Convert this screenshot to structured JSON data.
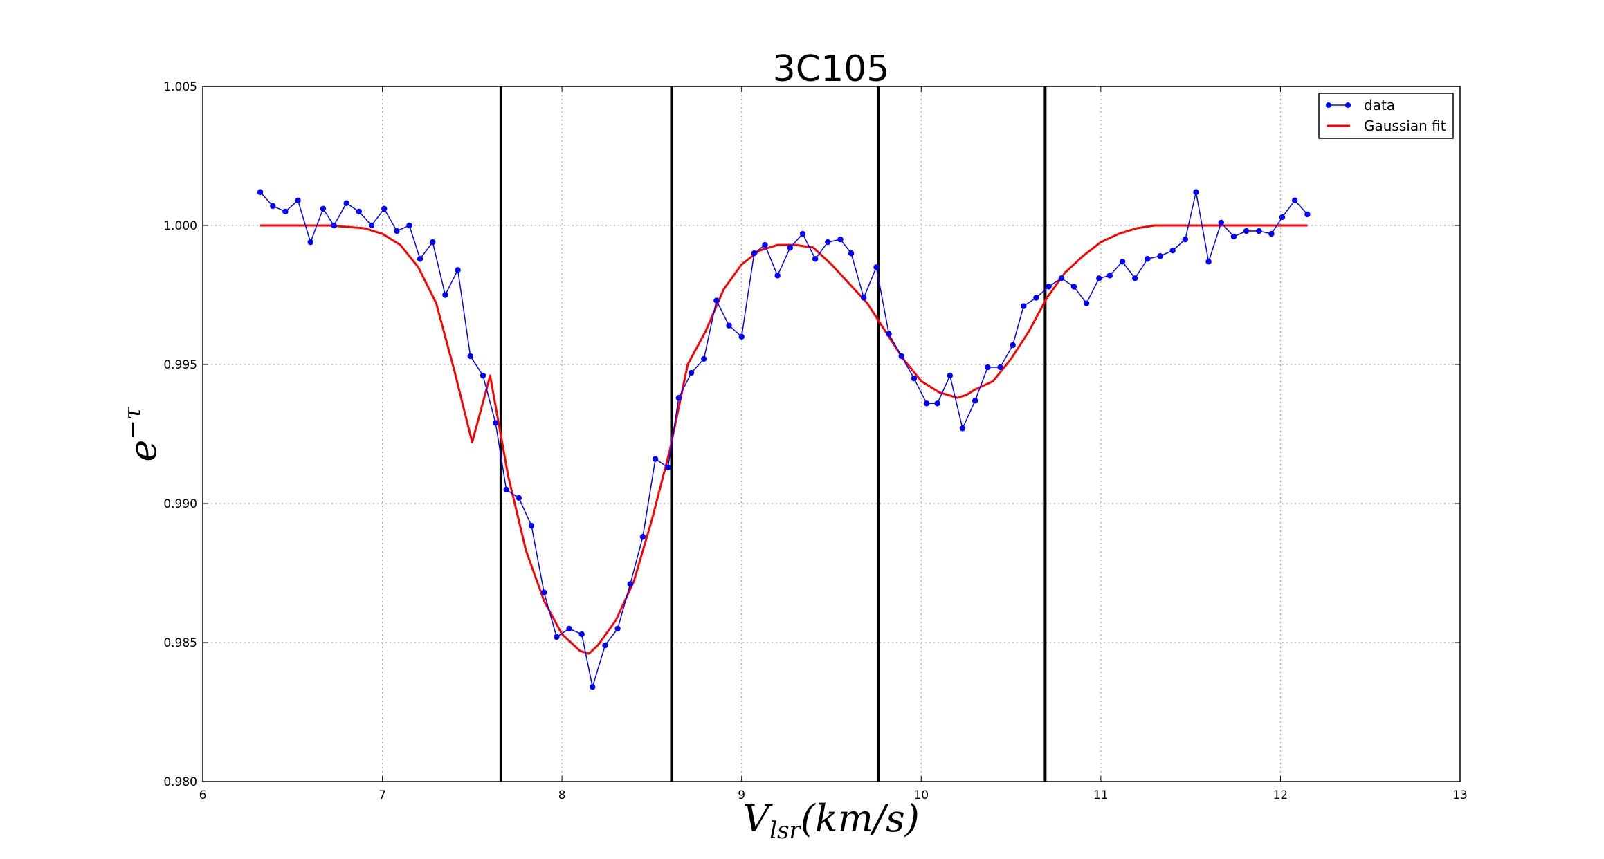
{
  "chart_data": {
    "type": "line",
    "title": "3C105",
    "xlabel": "V_lsr(km/s)",
    "ylabel": "e^-τ",
    "xlim": [
      6,
      13
    ],
    "ylim": [
      0.98,
      1.005
    ],
    "grid": true,
    "legend_position": "top-right",
    "x_ticks": [
      "6",
      "7",
      "8",
      "9",
      "10",
      "11",
      "12",
      "13"
    ],
    "y_ticks": [
      "0.980",
      "0.985",
      "0.990",
      "0.995",
      "1.000",
      "1.005"
    ],
    "vertical_lines": [
      7.66,
      8.61,
      9.76,
      10.69
    ],
    "series": [
      {
        "name": "data",
        "color": "#0000ff",
        "marker": "circle",
        "x": [
          6.32,
          6.39,
          6.46,
          6.53,
          6.6,
          6.67,
          6.73,
          6.8,
          6.87,
          6.94,
          7.01,
          7.08,
          7.15,
          7.21,
          7.28,
          7.35,
          7.42,
          7.49,
          7.56,
          7.63,
          7.69,
          7.76,
          7.83,
          7.9,
          7.97,
          8.04,
          8.11,
          8.17,
          8.24,
          8.31,
          8.38,
          8.45,
          8.52,
          8.59,
          8.65,
          8.72,
          8.79,
          8.86,
          8.93,
          9.0,
          9.07,
          9.13,
          9.2,
          9.27,
          9.34,
          9.41,
          9.48,
          9.55,
          9.61,
          9.68,
          9.75,
          9.82,
          9.89,
          9.96,
          10.03,
          10.09,
          10.16,
          10.23,
          10.3,
          10.37,
          10.44,
          10.51,
          10.57,
          10.64,
          10.71,
          10.78,
          10.85,
          10.92,
          10.99,
          11.05,
          11.12,
          11.19,
          11.26,
          11.33,
          11.4,
          11.47,
          11.53,
          11.6,
          11.67,
          11.74,
          11.81,
          11.88,
          11.95,
          12.01,
          12.08,
          12.15
        ],
        "y": [
          1.0012,
          1.0007,
          1.0005,
          1.0009,
          0.9994,
          1.0006,
          1.0,
          1.0008,
          1.0005,
          1.0,
          1.0006,
          0.9998,
          1.0,
          0.9988,
          0.9994,
          0.9975,
          0.9984,
          0.9953,
          0.9946,
          0.9929,
          0.9905,
          0.9902,
          0.9892,
          0.9868,
          0.9852,
          0.9855,
          0.9853,
          0.9834,
          0.9849,
          0.9855,
          0.9871,
          0.9888,
          0.9916,
          0.9913,
          0.9938,
          0.9947,
          0.9952,
          0.9973,
          0.9964,
          0.996,
          0.999,
          0.9993,
          0.9982,
          0.9992,
          0.9997,
          0.9988,
          0.9994,
          0.9995,
          0.999,
          0.9974,
          0.9985,
          0.9961,
          0.9953,
          0.9945,
          0.9936,
          0.9936,
          0.9946,
          0.9927,
          0.9937,
          0.9949,
          0.9949,
          0.9957,
          0.9971,
          0.9974,
          0.9978,
          0.9981,
          0.9978,
          0.9972,
          0.9981,
          0.9982,
          0.9987,
          0.9981,
          0.9988,
          0.9989,
          0.9991,
          0.9995,
          1.0012,
          0.9987,
          1.0001,
          0.9996,
          0.9998,
          0.9998,
          0.9997,
          1.0003,
          1.0009,
          1.0004
        ]
      },
      {
        "name": "Gaussian fit",
        "color": "#ff0000",
        "x": [
          6.32,
          6.5,
          6.7,
          6.9,
          7.0,
          7.1,
          7.2,
          7.3,
          7.4,
          7.5,
          7.6,
          7.7,
          7.8,
          7.9,
          8.0,
          8.05,
          8.1,
          8.15,
          8.2,
          8.3,
          8.4,
          8.5,
          8.6,
          8.7,
          8.8,
          8.9,
          9.0,
          9.1,
          9.2,
          9.3,
          9.4,
          9.5,
          9.6,
          9.7,
          9.8,
          9.9,
          10.0,
          10.1,
          10.2,
          10.25,
          10.3,
          10.4,
          10.5,
          10.6,
          10.7,
          10.8,
          10.9,
          11.0,
          11.1,
          11.2,
          11.3,
          11.4,
          11.5,
          11.7,
          11.9,
          12.15
        ],
        "y": [
          1.0,
          1.0,
          1.0,
          0.9999,
          0.9997,
          0.9993,
          0.9985,
          0.9972,
          0.9948,
          0.9922,
          0.9946,
          0.991,
          0.9883,
          0.9865,
          0.9853,
          0.985,
          0.9847,
          0.9846,
          0.9849,
          0.9858,
          0.9872,
          0.9894,
          0.9919,
          0.995,
          0.9962,
          0.9977,
          0.9986,
          0.9991,
          0.9993,
          0.9993,
          0.9992,
          0.9986,
          0.9979,
          0.9972,
          0.9962,
          0.9952,
          0.9944,
          0.994,
          0.9938,
          0.9939,
          0.9941,
          0.9944,
          0.9952,
          0.9962,
          0.9974,
          0.9983,
          0.9989,
          0.9994,
          0.9997,
          0.9999,
          1.0,
          1.0,
          1.0,
          1.0,
          1.0,
          1.0
        ]
      }
    ]
  }
}
